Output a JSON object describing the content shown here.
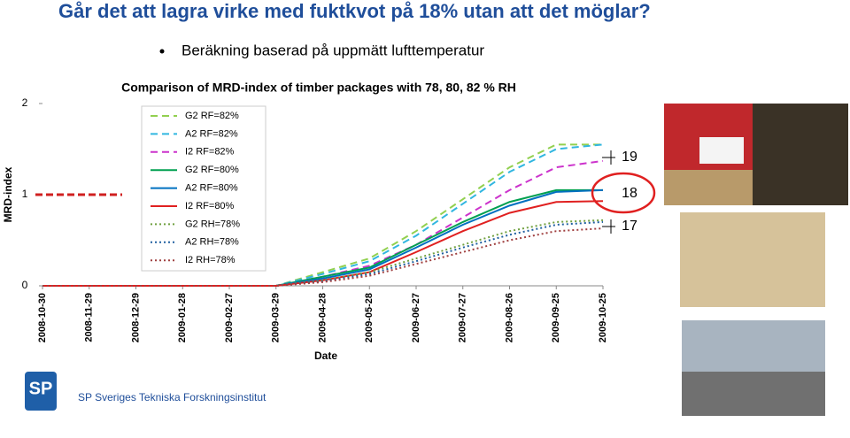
{
  "slide": {
    "title": "Går det att lagra virke med fuktkvot på 18% utan att det möglar?",
    "bullet": "Beräkning baserad på uppmätt lufttemperatur",
    "logo": "SP",
    "footer": "SP Sveriges Tekniska Forskningsinstitut",
    "annotations": [
      "19",
      "18",
      "17"
    ]
  },
  "chart_data": {
    "type": "line",
    "title": "Comparison of MRD-index of timber packages with 78, 80, 82 % RH",
    "x_label": "Date",
    "y_label": "MRD-index",
    "categories": [
      "2008-10-30",
      "2008-11-29",
      "2008-12-29",
      "2009-01-28",
      "2009-02-27",
      "2009-03-29",
      "2009-04-28",
      "2009-05-28",
      "2009-06-27",
      "2009-07-27",
      "2009-08-26",
      "2009-09-25",
      "2009-10-25"
    ],
    "ylim": [
      0,
      2
    ],
    "yticks": [
      0,
      1,
      2
    ],
    "threshold": 1,
    "series": [
      {
        "name": "G2 RF=82%",
        "color": "#92d050",
        "style": "dashed",
        "values": [
          0,
          0,
          0,
          0,
          0,
          0,
          0.15,
          0.3,
          0.6,
          0.95,
          1.3,
          1.55,
          1.55
        ]
      },
      {
        "name": "A2 RF=82%",
        "color": "#31b6e0",
        "style": "dashed",
        "values": [
          0,
          0,
          0,
          0,
          0,
          0,
          0.13,
          0.27,
          0.55,
          0.9,
          1.25,
          1.5,
          1.55
        ]
      },
      {
        "name": "I2 RF=82%",
        "color": "#cc33cc",
        "style": "dashed",
        "values": [
          0,
          0,
          0,
          0,
          0,
          0,
          0.1,
          0.22,
          0.45,
          0.75,
          1.05,
          1.3,
          1.37
        ]
      },
      {
        "name": "G2 RF=80%",
        "color": "#00a050",
        "style": "solid",
        "values": [
          0,
          0,
          0,
          0,
          0,
          0,
          0.1,
          0.2,
          0.45,
          0.7,
          0.92,
          1.05,
          1.05
        ]
      },
      {
        "name": "A2 RF=80%",
        "color": "#0070c0",
        "style": "solid",
        "values": [
          0,
          0,
          0,
          0,
          0,
          0,
          0.08,
          0.18,
          0.42,
          0.67,
          0.88,
          1.03,
          1.05
        ]
      },
      {
        "name": "I2 RF=80%",
        "color": "#e02020",
        "style": "solid",
        "values": [
          0,
          0,
          0,
          0,
          0,
          0,
          0.06,
          0.15,
          0.37,
          0.6,
          0.8,
          0.92,
          0.93
        ]
      },
      {
        "name": "G2 RH=78%",
        "color": "#70a040",
        "style": "dotted",
        "values": [
          0,
          0,
          0,
          0,
          0,
          0,
          0.06,
          0.15,
          0.3,
          0.45,
          0.6,
          0.7,
          0.72
        ]
      },
      {
        "name": "A2 RH=78%",
        "color": "#2060a0",
        "style": "dotted",
        "values": [
          0,
          0,
          0,
          0,
          0,
          0,
          0.05,
          0.13,
          0.27,
          0.42,
          0.56,
          0.67,
          0.7
        ]
      },
      {
        "name": "I2 RH=78%",
        "color": "#a04040",
        "style": "dotted",
        "values": [
          0,
          0,
          0,
          0,
          0,
          0,
          0.04,
          0.11,
          0.24,
          0.37,
          0.5,
          0.6,
          0.63
        ]
      }
    ]
  }
}
